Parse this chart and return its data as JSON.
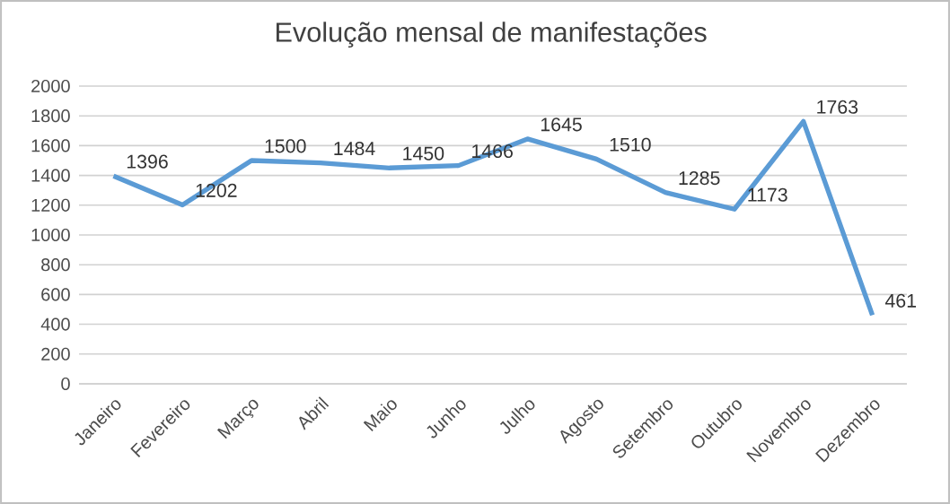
{
  "chart_data": {
    "type": "line",
    "title": "Evolução mensal de manifestações",
    "categories": [
      "Janeiro",
      "Fevereiro",
      "Março",
      "Abril",
      "Maio",
      "Junho",
      "Julho",
      "Agosto",
      "Setembro",
      "Outubro",
      "Novembro",
      "Dezembro"
    ],
    "values": [
      1396,
      1202,
      1500,
      1484,
      1450,
      1466,
      1645,
      1510,
      1285,
      1173,
      1763,
      461
    ],
    "color": "#5b9bd5",
    "ylim": [
      0,
      2000
    ],
    "yticks": [
      0,
      200,
      400,
      600,
      800,
      1000,
      1200,
      1400,
      1600,
      1800,
      2000
    ],
    "grid": "y",
    "data_labels": true,
    "marker": "none",
    "line_style": "solid"
  }
}
